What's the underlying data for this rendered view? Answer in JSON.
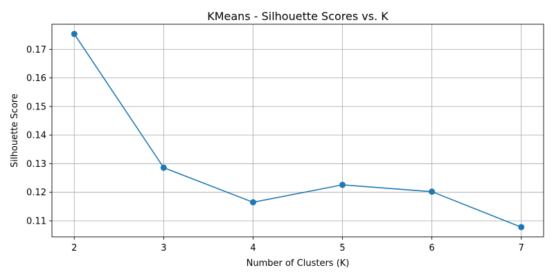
{
  "chart_data": {
    "type": "line",
    "title": "KMeans - Silhouette Scores vs. K",
    "xlabel": "Number of Clusters (K)",
    "ylabel": "Silhouette Score",
    "x": [
      2,
      3,
      4,
      5,
      6,
      7
    ],
    "series": [
      {
        "values": [
          0.1754,
          0.1286,
          0.1165,
          0.1226,
          0.1202,
          0.1078
        ],
        "color": "#1f77b4",
        "marker": "circle"
      }
    ],
    "xlim": [
      1.75,
      7.25
    ],
    "ylim": [
      0.1044,
      0.1788
    ],
    "xticks": [
      "2",
      "3",
      "4",
      "5",
      "6",
      "7"
    ],
    "yticks": [
      "0.11",
      "0.12",
      "0.13",
      "0.14",
      "0.15",
      "0.16",
      "0.17"
    ],
    "grid": true,
    "legend": "none"
  }
}
